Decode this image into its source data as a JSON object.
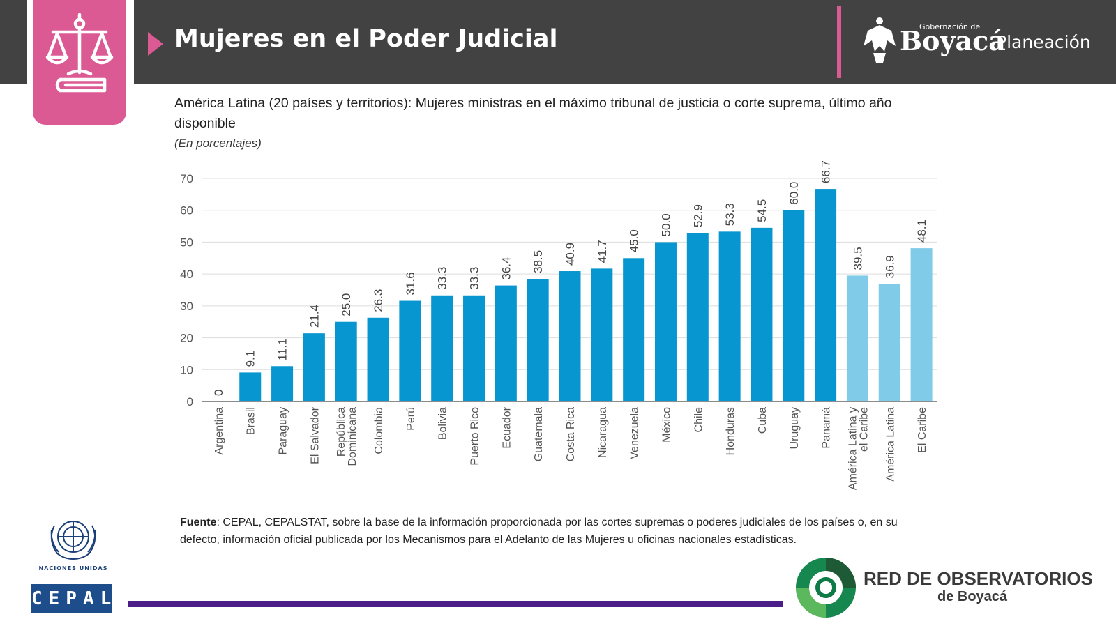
{
  "header": {
    "title": "Mujeres en el Poder Judicial",
    "icon": "scales-of-justice-icon",
    "org_small": "Gobernación de",
    "org_name": "Boyacá",
    "org_unit": "Planeación",
    "colors": {
      "bar": "#424242",
      "accent": "#dc5a94"
    }
  },
  "chart_data": {
    "type": "bar",
    "title": "América Latina (20 países y territorios): Mujeres ministras en el máximo tribunal de justicia o corte suprema, último año disponible",
    "subtitle": "(En porcentajes)",
    "xlabel": "",
    "ylabel": "",
    "ylim": [
      0,
      70
    ],
    "yticks": [
      "0",
      "10",
      "20",
      "30",
      "40",
      "50",
      "60",
      "70"
    ],
    "grid": true,
    "categories": [
      "Argentina",
      "Brasil",
      "Paraguay",
      "El Salvador",
      "República Dominicana",
      "Colombia",
      "Perú",
      "Bolivia",
      "Puerto Rico",
      "Ecuador",
      "Guatemala",
      "Costa Rica",
      "Nicaragua",
      "Venezuela",
      "México",
      "Chile",
      "Honduras",
      "Cuba",
      "Uruguay",
      "Panamá",
      "América Latina y el Caribe",
      "América Latina",
      "El Caribe"
    ],
    "category_lines": [
      [
        "Argentina"
      ],
      [
        "Brasil"
      ],
      [
        "Paraguay"
      ],
      [
        "El Salvador"
      ],
      [
        "República",
        "Dominicana"
      ],
      [
        "Colombia"
      ],
      [
        "Perú"
      ],
      [
        "Bolivia"
      ],
      [
        "Puerto Rico"
      ],
      [
        "Ecuador"
      ],
      [
        "Guatemala"
      ],
      [
        "Costa Rica"
      ],
      [
        "Nicaragua"
      ],
      [
        "Venezuela"
      ],
      [
        "México"
      ],
      [
        "Chile"
      ],
      [
        "Honduras"
      ],
      [
        "Cuba"
      ],
      [
        "Uruguay"
      ],
      [
        "Panamá"
      ],
      [
        "América Latina y",
        "el Caribe"
      ],
      [
        "América Latina"
      ],
      [
        "El Caribe"
      ]
    ],
    "values": [
      0,
      9.1,
      11.1,
      21.4,
      25.0,
      26.3,
      31.6,
      33.3,
      33.3,
      36.4,
      38.5,
      40.9,
      41.7,
      45.0,
      50.0,
      52.9,
      53.3,
      54.5,
      60.0,
      66.7,
      39.5,
      36.9,
      48.1
    ],
    "value_labels": [
      "0",
      "9.1",
      "11.1",
      "21.4",
      "25.0",
      "26.3",
      "31.6",
      "33.3",
      "33.3",
      "36.4",
      "38.5",
      "40.9",
      "41.7",
      "45.0",
      "50.0",
      "52.9",
      "53.3",
      "54.5",
      "60.0",
      "66.7",
      "39.5",
      "36.9",
      "48.1"
    ],
    "aggregate_flags": [
      false,
      false,
      false,
      false,
      false,
      false,
      false,
      false,
      false,
      false,
      false,
      false,
      false,
      false,
      false,
      false,
      false,
      false,
      false,
      false,
      true,
      true,
      true
    ],
    "colors": {
      "country": "#0796cf",
      "aggregate": "#7fcbe8",
      "grid": "#dddddd",
      "axis": "#666666",
      "text": "#555555"
    }
  },
  "source": {
    "label": "Fuente",
    "text": ": CEPAL, CEPALSTAT, sobre la base de la información proporcionada por las cortes supremas o poderes judiciales de los países o, en su defecto, información oficial publicada por los Mecanismos para el Adelanto de las Mujeres u oficinas nacionales estadísticas."
  },
  "footer": {
    "un_label": "NACIONES UNIDAS",
    "cepal_label": "CEPAL",
    "network_title": "RED DE OBSERVATORIOS",
    "network_sub": "de Boyacá",
    "line_color": "#4b1f87"
  }
}
